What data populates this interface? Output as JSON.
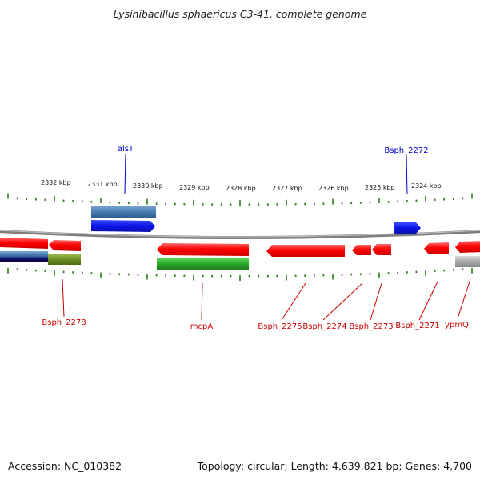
{
  "header": {
    "title": "Lysinibacillus sphaericus C3-41, complete genome"
  },
  "footer": {
    "accession": "Accession: NC_010382",
    "summary": "Topology: circular; Length: 4,639,821 bp; Genes: 4,700"
  },
  "map": {
    "tick_labels": [
      "2332 kbp",
      "2331 kbp",
      "2330 kbp",
      "2329 kbp",
      "2328 kbp",
      "2327 kbp",
      "2326 kbp",
      "2325 kbp",
      "2324 kbp"
    ],
    "gene_labels_top": [
      {
        "name": "alsT",
        "color": "#0000cc"
      },
      {
        "name": "Bsph_2272",
        "color": "#0000cc"
      }
    ],
    "gene_labels_bottom": [
      {
        "name": "Bsph_2278",
        "color": "#cc0000"
      },
      {
        "name": "mcpA",
        "color": "#cc0000"
      },
      {
        "name": "Bsph_2275",
        "color": "#cc0000"
      },
      {
        "name": "Bsph_2274",
        "color": "#cc0000"
      },
      {
        "name": "Bsph_2273",
        "color": "#cc0000"
      },
      {
        "name": "Bsph_2271",
        "color": "#cc0000"
      },
      {
        "name": "ypmQ",
        "color": "#cc0000"
      }
    ],
    "colors": {
      "forward_cds": "#0a14e6",
      "reverse_cds": "#e60000",
      "backbone": "#8a8a8a",
      "ticks": "#2e7d1e",
      "rna_green": "#2aa52a",
      "olive": "#6b8e23",
      "steel_blue": "#4a7fb5",
      "navy": "#0a0a5a",
      "grey_feature": "#a8a8a8"
    }
  }
}
